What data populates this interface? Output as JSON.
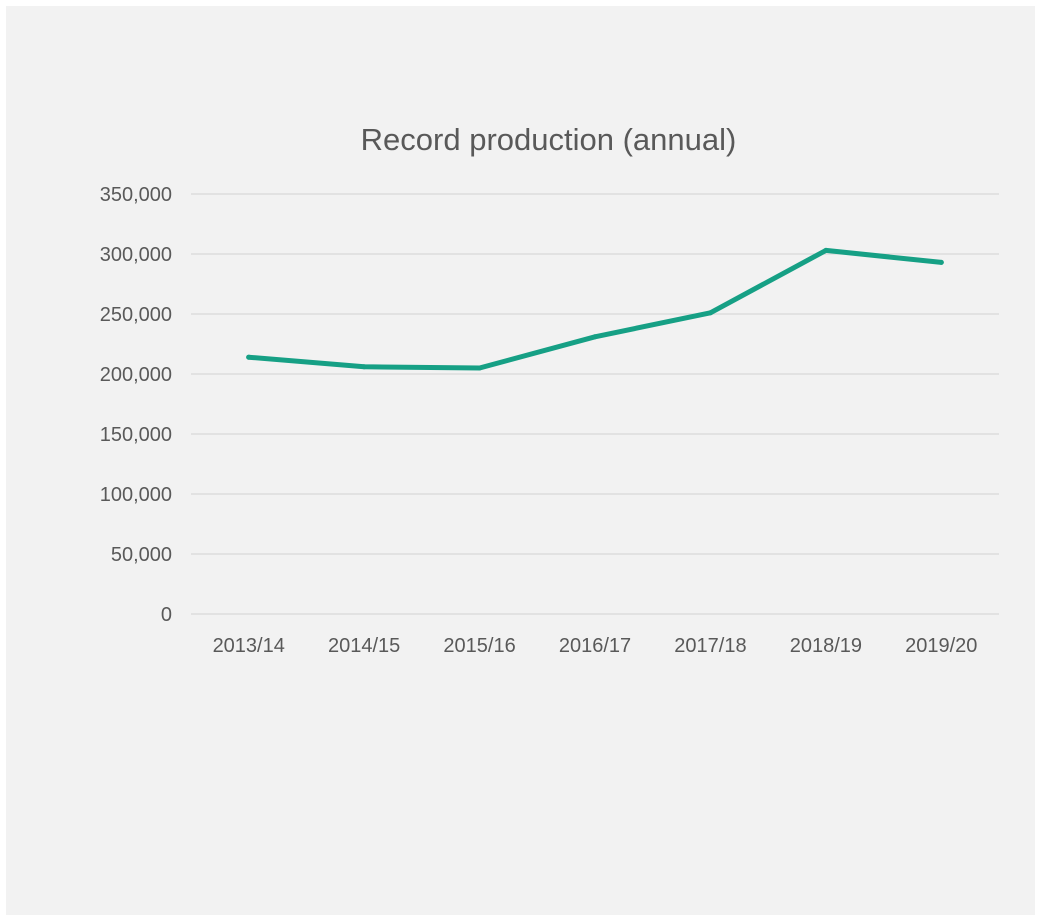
{
  "chart_data": {
    "type": "line",
    "title": "Record production (annual)",
    "xlabel": "",
    "ylabel": "",
    "categories": [
      "2013/14",
      "2014/15",
      "2015/16",
      "2016/17",
      "2017/18",
      "2018/19",
      "2019/20"
    ],
    "series": [
      {
        "values": [
          214000,
          206000,
          205000,
          231000,
          251000,
          303000,
          293000
        ],
        "color": "#16a085"
      }
    ],
    "ylim": [
      0,
      350000
    ],
    "yticks": [
      0,
      50000,
      100000,
      150000,
      200000,
      250000,
      300000,
      350000
    ],
    "ytick_labels": [
      "0",
      "50,000",
      "100,000",
      "150,000",
      "200,000",
      "250,000",
      "300,000",
      "350,000"
    ],
    "grid": true,
    "legend": "none",
    "colors": {
      "background": "#f2f2f2",
      "gridline": "#d9d9d9",
      "text": "#595959",
      "line": "#16a085"
    }
  }
}
